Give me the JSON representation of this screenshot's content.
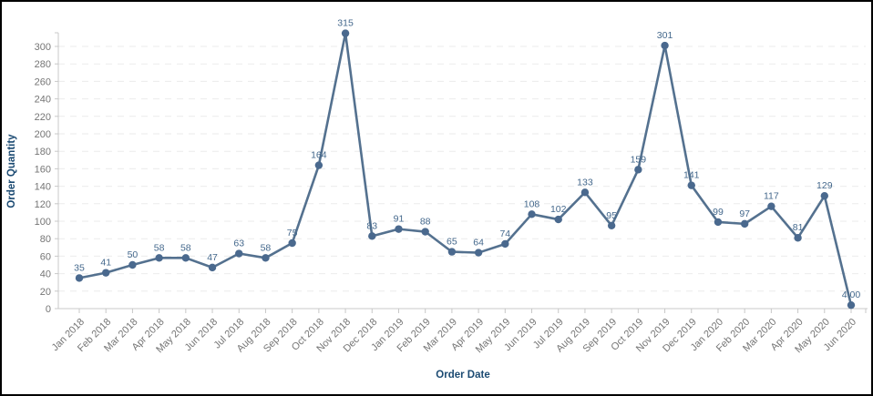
{
  "window": {
    "background": "#ffffff",
    "border_color": "#000000"
  },
  "chart_data": {
    "type": "line",
    "title": "",
    "xlabel": "Order Date",
    "ylabel": "Order Quantity",
    "legend": "none",
    "grid": "horizontal-dashed",
    "ylim": [
      0,
      316
    ],
    "yticks": [
      0,
      20,
      40,
      60,
      80,
      100,
      120,
      140,
      160,
      180,
      200,
      220,
      240,
      260,
      280,
      300
    ],
    "categories": [
      "Jan 2018",
      "Feb 2018",
      "Mar 2018",
      "Apr 2018",
      "May 2018",
      "Jun 2018",
      "Jul 2018",
      "Aug 2018",
      "Sep 2018",
      "Oct 2018",
      "Nov 2018",
      "Dec 2018",
      "Jan 2019",
      "Feb 2019",
      "Mar 2019",
      "Apr 2019",
      "May 2019",
      "Jun 2019",
      "Jul 2019",
      "Aug 2019",
      "Sep 2019",
      "Oct 2019",
      "Nov 2019",
      "Dec 2019",
      "Jan 2020",
      "Feb 2020",
      "Mar 2020",
      "Apr 2020",
      "May 2020",
      "Jun 2020"
    ],
    "series": [
      {
        "name": "Order Quantity",
        "values": [
          35,
          41,
          50,
          58,
          58,
          47,
          63,
          58,
          75,
          164,
          315,
          83,
          91,
          88,
          65,
          64,
          74,
          108,
          102,
          133,
          95,
          159,
          301,
          141,
          99,
          97,
          117,
          81,
          129,
          4
        ]
      }
    ],
    "point_labels": [
      "35",
      "41",
      "50",
      "58",
      "58",
      "47",
      "63",
      "58",
      "75",
      "164",
      "315",
      "83",
      "91",
      "88",
      "65",
      "64",
      "74",
      "108",
      "102",
      "133",
      "95",
      "159",
      "301",
      "141",
      "99",
      "97",
      "117",
      "81",
      "129",
      "4.00"
    ],
    "colors": {
      "line": "#54718f",
      "point": "#4a698e",
      "point_label": "#44688c",
      "axis_title": "#1b4a72",
      "tick_label": "#757575",
      "axis_line": "#c8c8c8",
      "gridline": "#ebebeb"
    }
  }
}
